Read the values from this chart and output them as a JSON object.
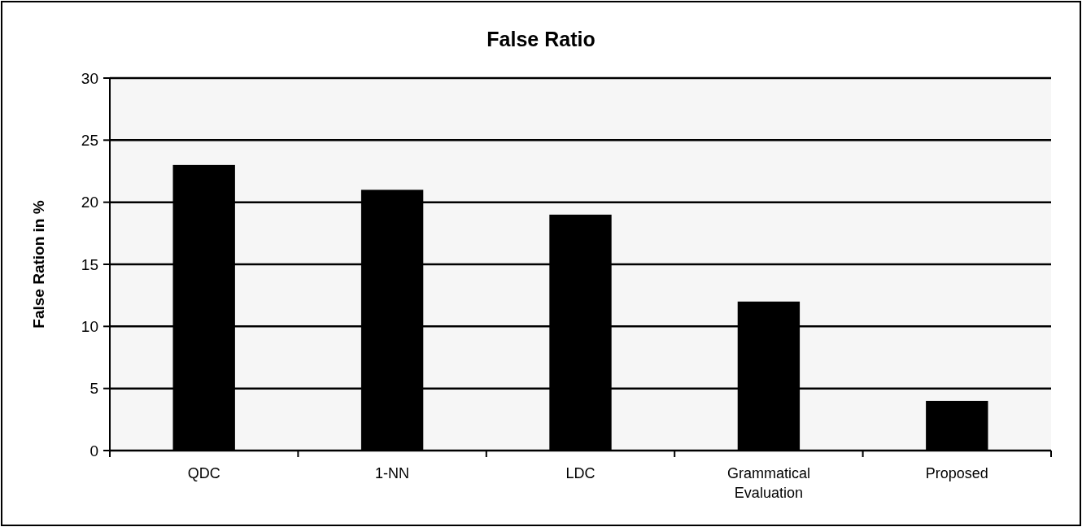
{
  "chart_data": {
    "type": "bar",
    "title": "False Ratio",
    "ylabel": "False Ration in %",
    "categories": [
      "QDC",
      "1-NN",
      "LDC",
      "Grammatical Evaluation",
      "Proposed"
    ],
    "values": [
      23,
      21,
      19,
      12,
      4
    ],
    "color": "#000000",
    "ylim": [
      0,
      30
    ],
    "yticks": [
      0,
      5,
      10,
      15,
      20,
      25,
      30
    ],
    "grid": "y"
  }
}
